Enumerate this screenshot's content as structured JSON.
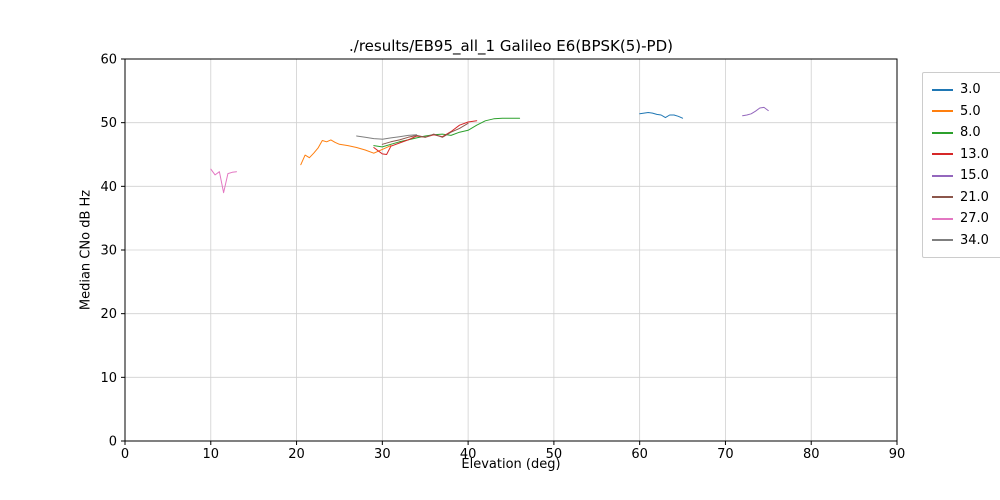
{
  "chart_data": {
    "type": "line",
    "title": "./results/EB95_all_1 Galileo E6(BPSK(5)-PD)",
    "xlabel": "Elevation (deg)",
    "ylabel": "Median CNo dB Hz",
    "xlim": [
      0,
      90
    ],
    "ylim": [
      0,
      60
    ],
    "xticks": [
      0,
      10,
      20,
      30,
      40,
      50,
      60,
      70,
      80,
      90
    ],
    "yticks": [
      0,
      10,
      20,
      30,
      40,
      50,
      60
    ],
    "grid": true,
    "grid_color": "#d0d0d0",
    "spine_color": "#000000",
    "legend_position": "outside upper right",
    "series": [
      {
        "name": "3.0",
        "color": "#1f77b4",
        "x": [
          60,
          60.5,
          61,
          61.5,
          62,
          62.5,
          63,
          63.5,
          64,
          64.5,
          65
        ],
        "y": [
          51.4,
          51.5,
          51.6,
          51.5,
          51.3,
          51.2,
          50.8,
          51.2,
          51.2,
          51.0,
          50.7
        ]
      },
      {
        "name": "5.0",
        "color": "#ff7f0e",
        "x": [
          20.5,
          21,
          21.5,
          22,
          22.5,
          23,
          23.5,
          24,
          24.5,
          25,
          26,
          27,
          28,
          29,
          30,
          31
        ],
        "y": [
          43.4,
          44.9,
          44.5,
          45.2,
          46.0,
          47.2,
          47.0,
          47.3,
          46.9,
          46.6,
          46.4,
          46.1,
          45.7,
          45.2,
          45.8,
          46.4
        ]
      },
      {
        "name": "8.0",
        "color": "#2ca02c",
        "x": [
          29,
          30,
          31,
          32,
          33,
          34,
          35,
          36,
          37,
          38,
          39,
          40,
          41,
          42,
          43,
          44,
          45,
          46
        ],
        "y": [
          46.4,
          46.2,
          46.6,
          47.0,
          47.3,
          47.6,
          47.9,
          48.1,
          48.2,
          48.0,
          48.5,
          48.8,
          49.6,
          50.3,
          50.6,
          50.7,
          50.7,
          50.7
        ]
      },
      {
        "name": "13.0",
        "color": "#d62728",
        "x": [
          29,
          29.5,
          30,
          30.5,
          31,
          32,
          33,
          34,
          35,
          36,
          37,
          38,
          39,
          40,
          41
        ],
        "y": [
          46.1,
          45.6,
          45.1,
          45.0,
          46.3,
          46.8,
          47.3,
          47.9,
          47.7,
          48.1,
          47.8,
          48.6,
          49.6,
          50.1,
          50.3
        ]
      },
      {
        "name": "15.0",
        "color": "#9467bd",
        "x": [
          72,
          72.5,
          73,
          73.5,
          74,
          74.5,
          75
        ],
        "y": [
          51.1,
          51.2,
          51.4,
          51.8,
          52.3,
          52.4,
          51.9
        ]
      },
      {
        "name": "21.0",
        "color": "#8c564b",
        "x": [
          30,
          31,
          32,
          33,
          34,
          35,
          36,
          37,
          38,
          39,
          40
        ],
        "y": [
          46.6,
          47.0,
          47.3,
          47.7,
          48.0,
          47.7,
          48.2,
          47.7,
          48.5,
          49.1,
          49.9
        ]
      },
      {
        "name": "27.0",
        "color": "#e377c2",
        "x": [
          10,
          10.5,
          11,
          11.5,
          12,
          12.5,
          13
        ],
        "y": [
          42.7,
          41.8,
          42.3,
          39.0,
          42.0,
          42.2,
          42.3
        ]
      },
      {
        "name": "34.0",
        "color": "#7f7f7f",
        "x": [
          27,
          28,
          29,
          30,
          31,
          32,
          33,
          34
        ],
        "y": [
          47.9,
          47.7,
          47.5,
          47.4,
          47.6,
          47.8,
          48.0,
          48.1
        ]
      }
    ]
  }
}
